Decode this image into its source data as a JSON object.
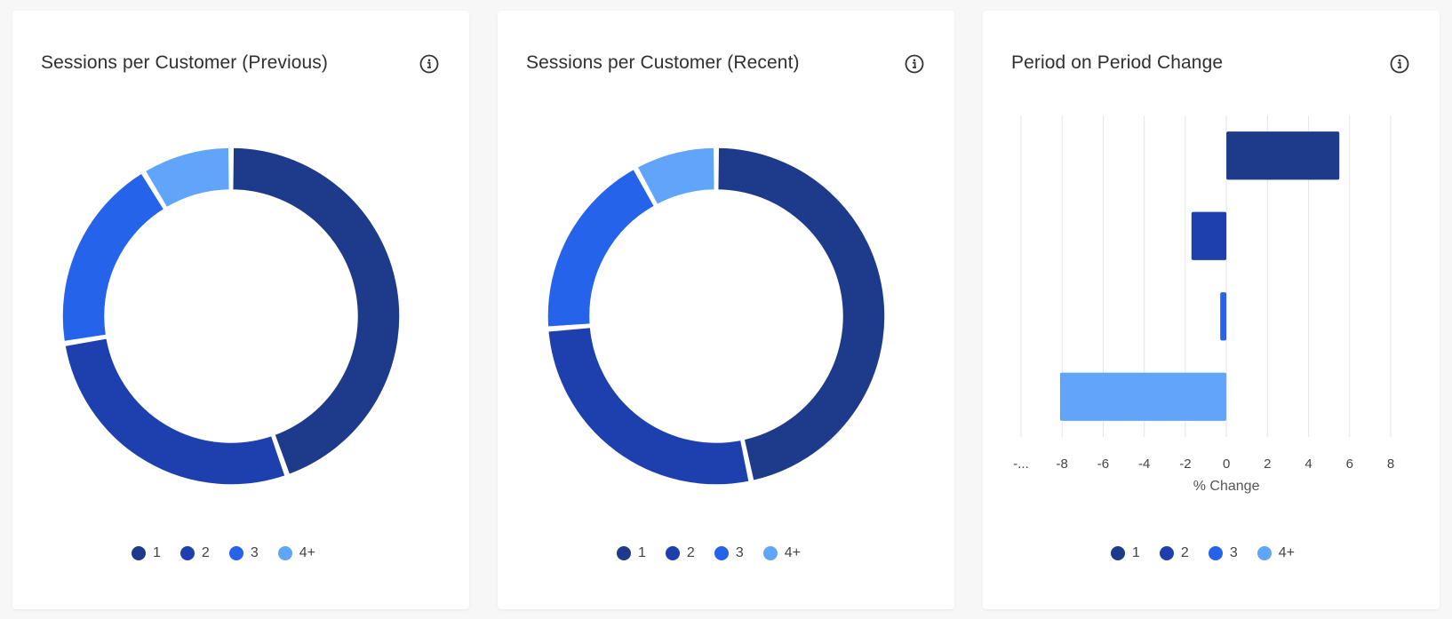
{
  "colors": {
    "series": [
      "#1e3a8a",
      "#1e40af",
      "#2563eb",
      "#60a5fa"
    ],
    "grid": "#e5e5e5",
    "card": "#ffffff",
    "page": "#f7f7f7"
  },
  "legend": {
    "items": [
      {
        "label": "1",
        "color": "#1e3a8a"
      },
      {
        "label": "2",
        "color": "#1e40af"
      },
      {
        "label": "3",
        "color": "#2563eb"
      },
      {
        "label": "4+",
        "color": "#60a5fa"
      }
    ]
  },
  "cards": [
    {
      "title": "Sessions per Customer (Previous)",
      "icon": "info-icon"
    },
    {
      "title": "Sessions per Customer (Recent)",
      "icon": "info-icon"
    },
    {
      "title": "Period on Period Change",
      "icon": "info-icon"
    }
  ],
  "chart_data": [
    {
      "type": "pie",
      "variant": "donut",
      "title": "Sessions per Customer (Previous)",
      "categories": [
        "1",
        "2",
        "3",
        "4+"
      ],
      "values": [
        44.6,
        27.8,
        18.9,
        8.7
      ],
      "legend_position": "bottom"
    },
    {
      "type": "pie",
      "variant": "donut",
      "title": "Sessions per Customer (Recent)",
      "categories": [
        "1",
        "2",
        "3",
        "4+"
      ],
      "values": [
        47.0,
        27.3,
        18.4,
        8.0
      ],
      "legend_position": "bottom"
    },
    {
      "type": "bar",
      "orientation": "horizontal",
      "title": "Period on Period Change",
      "categories": [
        "1",
        "2",
        "3",
        "4+"
      ],
      "values": [
        5.5,
        -1.7,
        -0.3,
        -8.1
      ],
      "xlabel": "% Change",
      "ylabel": "",
      "xlim": [
        -10,
        8
      ],
      "xticks": [
        "-...",
        "-8",
        "-6",
        "-4",
        "-2",
        "0",
        "2",
        "4",
        "6",
        "8"
      ],
      "grid": true,
      "legend_position": "bottom"
    }
  ]
}
